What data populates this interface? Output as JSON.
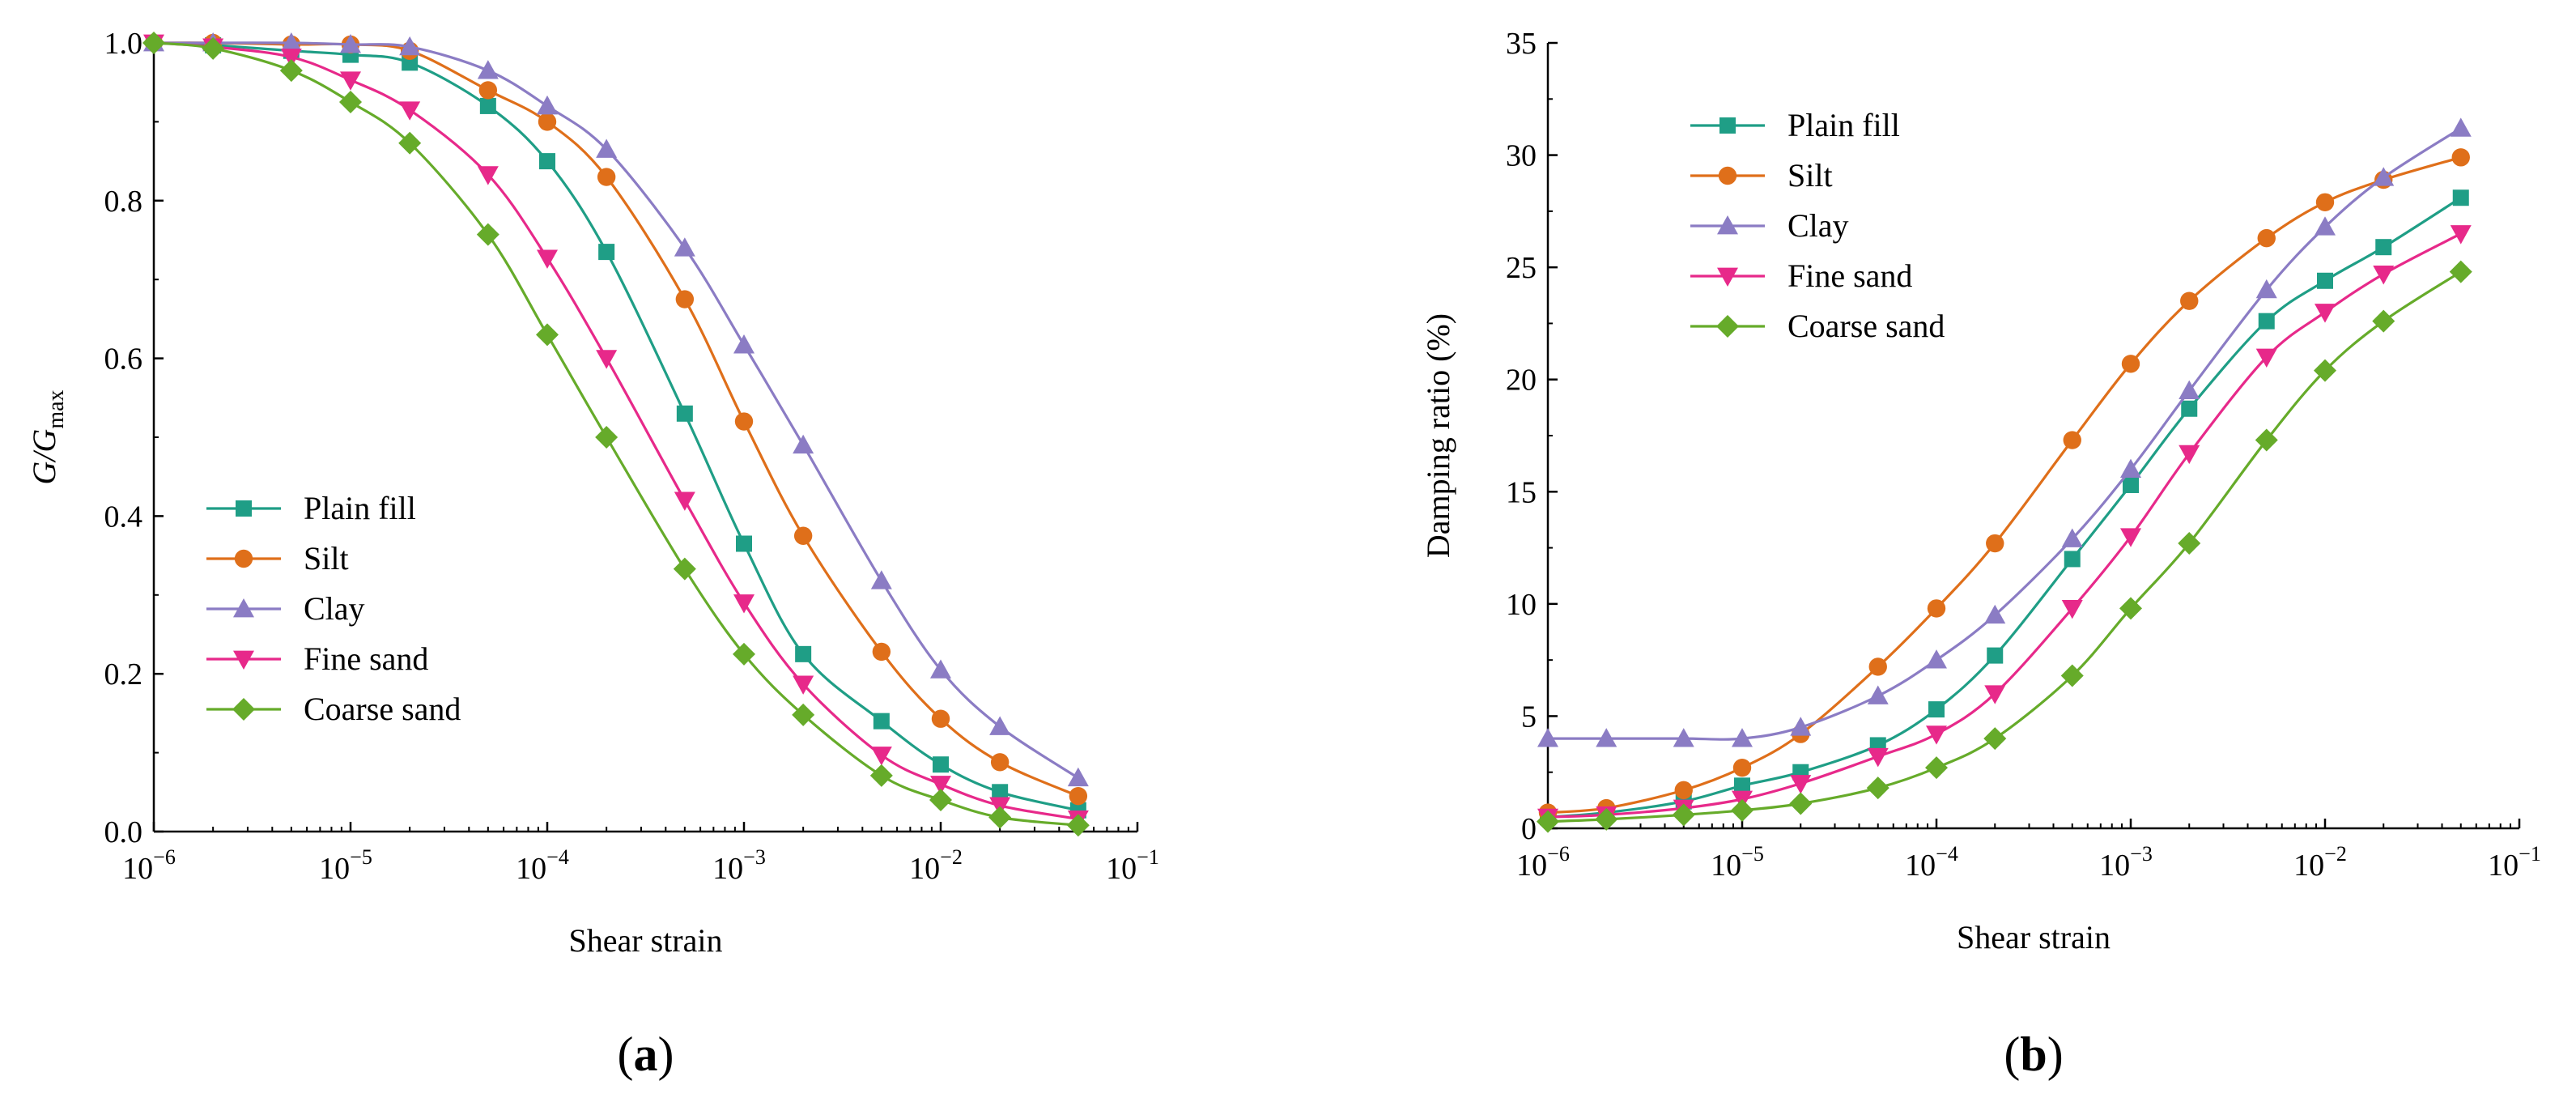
{
  "colors": {
    "Plain fill": "#1f9e86",
    "Silt": "#df6f1a",
    "Clay": "#8b7cc4",
    "Fine sand": "#e7298a",
    "Coarse sand": "#66ab2a"
  },
  "chart_data": [
    {
      "id": "a",
      "type": "line",
      "panel_label": "a",
      "xlabel": "Shear strain",
      "ylabel": "G/G",
      "ylabel_sub": "max",
      "xscale": "log",
      "xlim_exp": [
        -6,
        -1
      ],
      "ylim": [
        0,
        1.0
      ],
      "yticks": [
        0.0,
        0.2,
        0.4,
        0.6,
        0.8,
        1.0
      ],
      "ytick_labels": [
        "0.0",
        "0.2",
        "0.4",
        "0.6",
        "0.8",
        "1.0"
      ],
      "xtick_exps": [
        -6,
        -5,
        -4,
        -3,
        -2,
        -1
      ],
      "legend_position": "lower-left",
      "x": [
        1e-06,
        2e-06,
        5e-06,
        1e-05,
        2e-05,
        5e-05,
        0.0001,
        0.0002,
        0.0005,
        0.001,
        0.002,
        0.005,
        0.01,
        0.02,
        0.05
      ],
      "series": [
        {
          "name": "Plain fill",
          "marker": "square",
          "values": [
            1.0,
            0.997,
            0.99,
            0.985,
            0.975,
            0.92,
            0.85,
            0.735,
            0.53,
            0.365,
            0.225,
            0.14,
            0.085,
            0.05,
            0.027
          ]
        },
        {
          "name": "Silt",
          "marker": "circle",
          "values": [
            1.0,
            1.0,
            0.998,
            0.998,
            0.99,
            0.94,
            0.9,
            0.83,
            0.675,
            0.52,
            0.375,
            0.228,
            0.143,
            0.088,
            0.045
          ]
        },
        {
          "name": "Clay",
          "marker": "triangle-up",
          "values": [
            1.0,
            1.0,
            1.0,
            0.998,
            0.995,
            0.965,
            0.92,
            0.865,
            0.74,
            0.617,
            0.49,
            0.318,
            0.205,
            0.133,
            0.068
          ]
        },
        {
          "name": "Fine sand",
          "marker": "triangle-down",
          "values": [
            1.0,
            0.995,
            0.982,
            0.953,
            0.915,
            0.833,
            0.727,
            0.6,
            0.42,
            0.29,
            0.187,
            0.097,
            0.06,
            0.033,
            0.016
          ]
        },
        {
          "name": "Coarse sand",
          "marker": "diamond",
          "values": [
            1.0,
            0.993,
            0.965,
            0.925,
            0.873,
            0.757,
            0.63,
            0.5,
            0.333,
            0.225,
            0.148,
            0.071,
            0.04,
            0.018,
            0.008
          ]
        }
      ]
    },
    {
      "id": "b",
      "type": "line",
      "panel_label": "b",
      "xlabel": "Shear strain",
      "ylabel": "Damping ratio (%)",
      "xscale": "log",
      "xlim_exp": [
        -6,
        -1
      ],
      "ylim": [
        0,
        35
      ],
      "yticks": [
        0,
        5,
        10,
        15,
        20,
        25,
        30,
        35
      ],
      "ytick_labels": [
        "0",
        "5",
        "10",
        "15",
        "20",
        "25",
        "30",
        "35"
      ],
      "xtick_exps": [
        -6,
        -5,
        -4,
        -3,
        -2,
        -1
      ],
      "legend_position": "upper-left",
      "x": [
        1e-06,
        2e-06,
        5e-06,
        1e-05,
        2e-05,
        5e-05,
        0.0001,
        0.0002,
        0.0005,
        0.001,
        0.002,
        0.005,
        0.01,
        0.02,
        0.05
      ],
      "series": [
        {
          "name": "Plain fill",
          "marker": "square",
          "values": [
            0.5,
            0.7,
            1.2,
            1.9,
            2.5,
            3.7,
            5.3,
            7.7,
            12.0,
            15.3,
            18.7,
            22.6,
            24.4,
            25.9,
            28.1
          ]
        },
        {
          "name": "Silt",
          "marker": "circle",
          "values": [
            0.7,
            0.9,
            1.7,
            2.7,
            4.2,
            7.2,
            9.8,
            12.7,
            17.3,
            20.7,
            23.5,
            26.3,
            27.9,
            28.9,
            29.9
          ]
        },
        {
          "name": "Clay",
          "marker": "triangle-up",
          "values": [
            4.0,
            4.0,
            4.0,
            4.0,
            4.5,
            5.9,
            7.5,
            9.5,
            12.9,
            16.0,
            19.5,
            24.0,
            26.8,
            29.0,
            31.2
          ]
        },
        {
          "name": "Fine sand",
          "marker": "triangle-down",
          "values": [
            0.5,
            0.6,
            0.9,
            1.3,
            2.0,
            3.2,
            4.2,
            6.0,
            9.8,
            13.0,
            16.7,
            21.0,
            23.0,
            24.7,
            26.5
          ]
        },
        {
          "name": "Coarse sand",
          "marker": "diamond",
          "values": [
            0.3,
            0.4,
            0.6,
            0.8,
            1.1,
            1.8,
            2.7,
            4.0,
            6.8,
            9.8,
            12.7,
            17.3,
            20.4,
            22.6,
            24.8
          ]
        }
      ]
    }
  ]
}
